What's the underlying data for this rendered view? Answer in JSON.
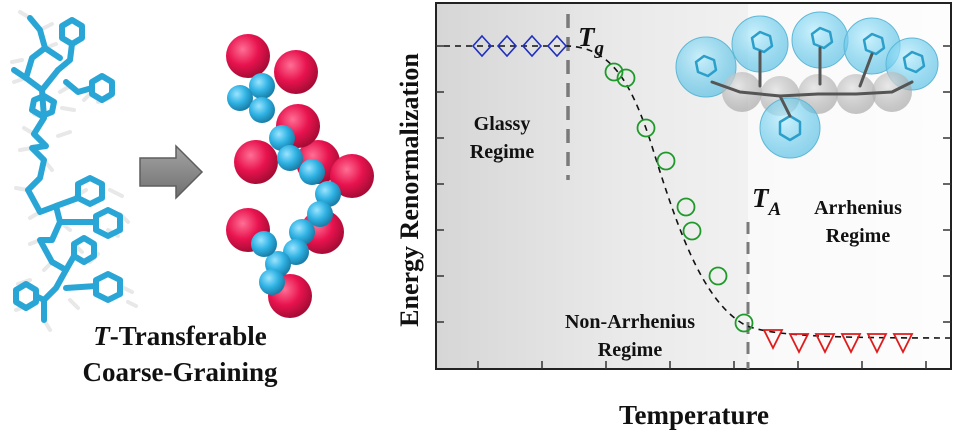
{
  "left_panel": {
    "caption_line1_symbol": "T",
    "caption_line1_text": "-Transferable",
    "caption_line2": "Coarse-Graining"
  },
  "plot": {
    "ylabel": "Energy Renormalization",
    "xlabel": "Temperature",
    "tg_symbol": "T",
    "tg_sub": "g",
    "ta_symbol": "T",
    "ta_sub": "A",
    "glassy_line1": "Glassy",
    "glassy_line2": "Regime",
    "arrhenius_line1": "Arrhenius",
    "arrhenius_line2": "Regime",
    "nonarr_line1": "Non-Arrhenius",
    "nonarr_line2": "Regime"
  },
  "colors": {
    "atomistic_bond": "#2aa6d6",
    "hydrogen": "#e8e8e8",
    "cg_backbone": "#33b5e5",
    "cg_sidegroup": "#e8134f",
    "glassy_marker": "#1f2fbf",
    "transition_marker": "#1f9a2a",
    "arrhenius_marker": "#e01b1b",
    "arrow": "#8a8a8a"
  }
}
